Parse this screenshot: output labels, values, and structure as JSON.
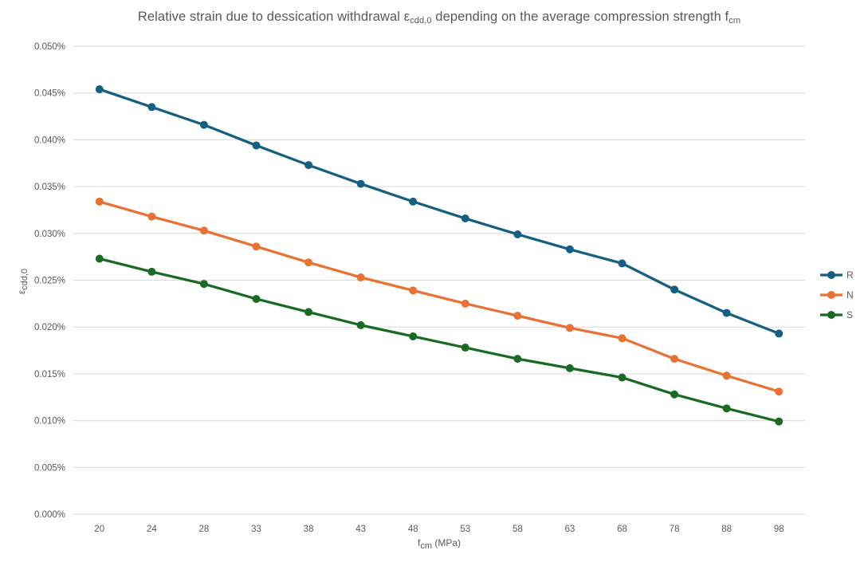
{
  "chart_data": {
    "type": "line",
    "title": "Relative strain due to dessication withdrawal εcdd,0 depending on the average compression strength fcm",
    "title_parts": {
      "t1": "Relative strain due to dessication withdrawal ε",
      "sub1": "cdd,0",
      "t2": " depending on the average compression strength f",
      "sub2": "cm"
    },
    "xlabel": "fcm (MPa)",
    "xlabel_parts": {
      "t1": "f",
      "sub": "cm",
      "t2": " (MPa)"
    },
    "ylabel": "εcdd,0",
    "ylabel_parts": {
      "t1": "ε",
      "sub": "cdd,0"
    },
    "categories": [
      20,
      24,
      28,
      33,
      38,
      43,
      48,
      53,
      58,
      63,
      68,
      78,
      88,
      98
    ],
    "series": [
      {
        "name": "R",
        "color": "#156082",
        "values": [
          0.0454,
          0.0435,
          0.0416,
          0.0394,
          0.0373,
          0.0353,
          0.0334,
          0.0316,
          0.0299,
          0.0283,
          0.0268,
          0.024,
          0.0215,
          0.0193
        ]
      },
      {
        "name": "N",
        "color": "#E97132",
        "values": [
          0.0334,
          0.0318,
          0.0303,
          0.0286,
          0.0269,
          0.0253,
          0.0239,
          0.0225,
          0.0212,
          0.0199,
          0.0188,
          0.0166,
          0.0148,
          0.0131
        ]
      },
      {
        "name": "S",
        "color": "#196B24",
        "values": [
          0.0273,
          0.0259,
          0.0246,
          0.023,
          0.0216,
          0.0202,
          0.019,
          0.0178,
          0.0166,
          0.0156,
          0.0146,
          0.0128,
          0.0113,
          0.0099
        ]
      }
    ],
    "ylim": [
      0,
      0.05
    ],
    "ytick_step": 0.005,
    "ytick_labels": [
      "0.000%",
      "0.005%",
      "0.010%",
      "0.015%",
      "0.020%",
      "0.025%",
      "0.030%",
      "0.035%",
      "0.040%",
      "0.045%",
      "0.050%"
    ],
    "grid": true,
    "legend_position": "right",
    "style": {
      "grid_color": "#D9D9D9",
      "text_color": "#595959",
      "line_width": 3.25,
      "marker_radius": 5
    }
  }
}
